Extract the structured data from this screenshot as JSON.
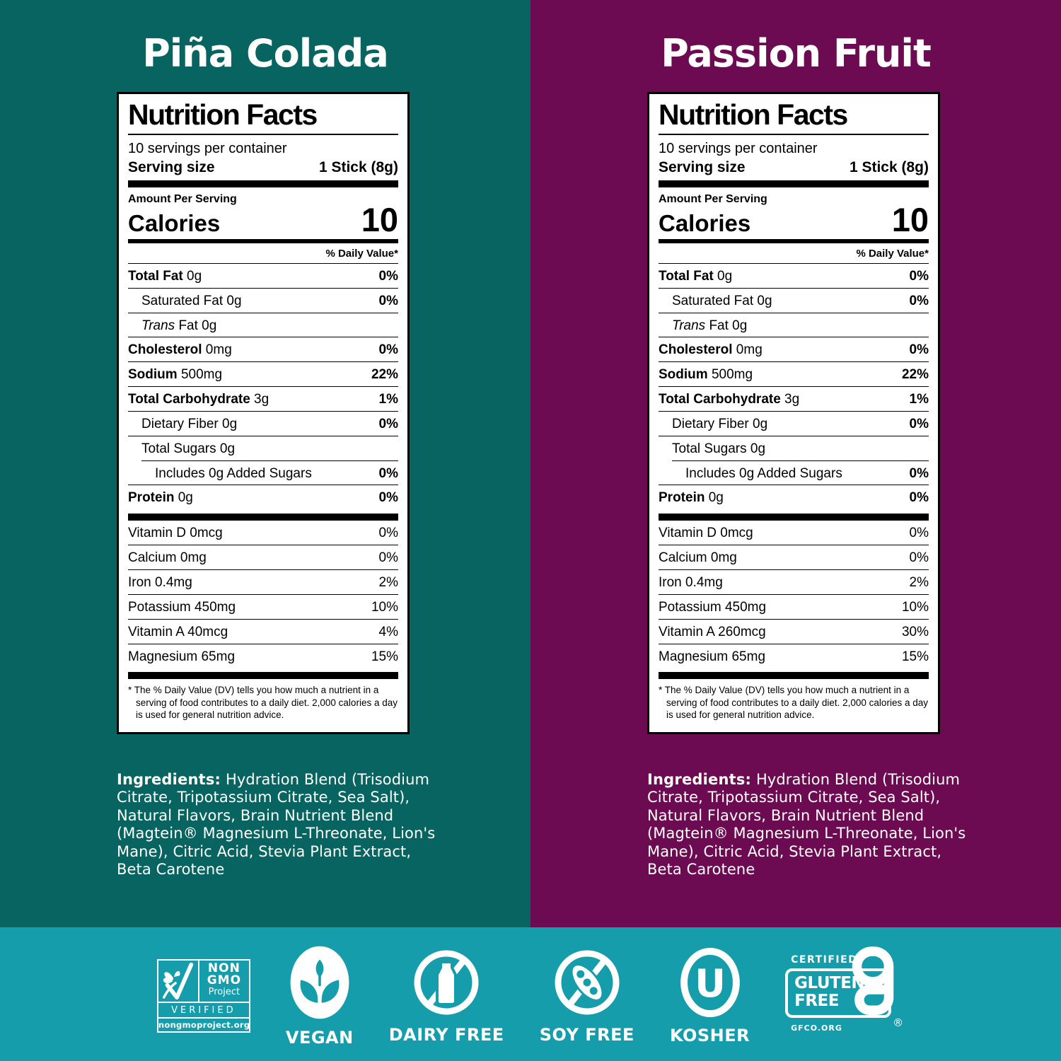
{
  "colors": {
    "left_bg": "#076460",
    "right_bg": "#6C0B51",
    "band_bg": "#169DAB",
    "label_bg": "#FFFFFF",
    "label_text": "#000000",
    "text_on_color": "#FFFFFF"
  },
  "panels": [
    {
      "flavor": "Piña Colada",
      "nutrition": {
        "title": "Nutrition Facts",
        "servings_per_container": "10 servings per container",
        "serving_size_label": "Serving size",
        "serving_size_value": "1 Stick (8g)",
        "amount_per_serving": "Amount Per Serving",
        "calories_label": "Calories",
        "calories_value": "10",
        "daily_value_header": "% Daily Value*",
        "rows": [
          {
            "name": "Total Fat",
            "amount": "0g",
            "dv": "0%",
            "style": "bold"
          },
          {
            "name": "Saturated Fat",
            "amount": "0g",
            "dv": "0%",
            "style": "indent"
          },
          {
            "name": "Trans",
            "amount": "Fat 0g",
            "dv": "",
            "style": "indent-italic"
          },
          {
            "name": "Cholesterol",
            "amount": "0mg",
            "dv": "0%",
            "style": "bold"
          },
          {
            "name": "Sodium",
            "amount": "500mg",
            "dv": "22%",
            "style": "bold"
          },
          {
            "name": "Total Carbohydrate",
            "amount": "3g",
            "dv": "1%",
            "style": "bold"
          },
          {
            "name": "Dietary Fiber",
            "amount": "0g",
            "dv": "0%",
            "style": "indent"
          },
          {
            "name": "Total Sugars",
            "amount": "0g",
            "dv": "",
            "style": "indent"
          },
          {
            "name": "Includes 0g Added Sugars",
            "amount": "",
            "dv": "0%",
            "style": "inset"
          },
          {
            "name": "Protein",
            "amount": "0g",
            "dv": "0%",
            "style": "bold"
          }
        ],
        "micro_rows": [
          {
            "name": "Vitamin D 0mcg",
            "dv": "0%",
            "style": "micro"
          },
          {
            "name": "Calcium 0mg",
            "dv": "0%",
            "style": "micro"
          },
          {
            "name": "Iron 0.4mg",
            "dv": "2%",
            "style": "micro"
          },
          {
            "name": "Potassium 450mg",
            "dv": "10%",
            "style": "micro"
          },
          {
            "name": "Vitamin A 40mcg",
            "dv": "4%",
            "style": "micro"
          },
          {
            "name": "Magnesium 65mg",
            "dv": "15%",
            "style": "micro"
          }
        ],
        "footnote": "* The % Daily Value (DV) tells you how much a nutrient in a serving of food contributes to a daily diet. 2,000 calories a day is used for general nutrition advice."
      },
      "ingredients_label": "Ingredients:",
      "ingredients_text": "Hydration Blend (Trisodium Citrate, Tripotassium Citrate, Sea Salt), Natural Flavors, Brain Nutrient Blend (Magtein® Magnesium L-Threonate, Lion's Mane), Citric Acid, Stevia Plant Extract, Beta Carotene"
    },
    {
      "flavor": "Passion Fruit",
      "nutrition": {
        "title": "Nutrition Facts",
        "servings_per_container": "10 servings per container",
        "serving_size_label": "Serving size",
        "serving_size_value": "1 Stick (8g)",
        "amount_per_serving": "Amount Per Serving",
        "calories_label": "Calories",
        "calories_value": "10",
        "daily_value_header": "% Daily Value*",
        "rows": [
          {
            "name": "Total Fat",
            "amount": "0g",
            "dv": "0%",
            "style": "bold"
          },
          {
            "name": "Saturated Fat",
            "amount": "0g",
            "dv": "0%",
            "style": "indent"
          },
          {
            "name": "Trans",
            "amount": "Fat 0g",
            "dv": "",
            "style": "indent-italic"
          },
          {
            "name": "Cholesterol",
            "amount": "0mg",
            "dv": "0%",
            "style": "bold"
          },
          {
            "name": "Sodium",
            "amount": "500mg",
            "dv": "22%",
            "style": "bold"
          },
          {
            "name": "Total Carbohydrate",
            "amount": "3g",
            "dv": "1%",
            "style": "bold"
          },
          {
            "name": "Dietary Fiber",
            "amount": "0g",
            "dv": "0%",
            "style": "indent"
          },
          {
            "name": "Total Sugars",
            "amount": "0g",
            "dv": "",
            "style": "indent"
          },
          {
            "name": "Includes 0g Added Sugars",
            "amount": "",
            "dv": "0%",
            "style": "inset"
          },
          {
            "name": "Protein",
            "amount": "0g",
            "dv": "0%",
            "style": "bold"
          }
        ],
        "micro_rows": [
          {
            "name": "Vitamin D 0mcg",
            "dv": "0%",
            "style": "micro"
          },
          {
            "name": "Calcium 0mg",
            "dv": "0%",
            "style": "micro"
          },
          {
            "name": "Iron 0.4mg",
            "dv": "2%",
            "style": "micro"
          },
          {
            "name": "Potassium 450mg",
            "dv": "10%",
            "style": "micro"
          },
          {
            "name": "Vitamin A 260mcg",
            "dv": "30%",
            "style": "micro"
          },
          {
            "name": "Magnesium 65mg",
            "dv": "15%",
            "style": "micro"
          }
        ],
        "footnote": "* The % Daily Value (DV) tells you how much a nutrient in a serving of food contributes to a daily diet. 2,000 calories a day is used for general nutrition advice."
      },
      "ingredients_label": "Ingredients:",
      "ingredients_text": "Hydration Blend (Trisodium Citrate, Tripotassium Citrate, Sea Salt), Natural Flavors, Brain Nutrient Blend (Magtein® Magnesium L-Threonate, Lion's Mane), Citric Acid, Stevia Plant Extract, Beta Carotene"
    }
  ],
  "badges": {
    "non_gmo": {
      "line1": "NON",
      "line2": "GMO",
      "line3": "Project",
      "verified": "VERIFIED",
      "url": "nongmoproject.org"
    },
    "items": [
      {
        "label": "VEGAN"
      },
      {
        "label": "DAIRY FREE"
      },
      {
        "label": "SOY FREE"
      },
      {
        "label": "KOSHER"
      }
    ],
    "gluten_free": {
      "certified": "CERTIFIED",
      "line1": "GLUTEN",
      "line2": "FREE",
      "registered": "®",
      "org": "GFCO.ORG"
    }
  }
}
